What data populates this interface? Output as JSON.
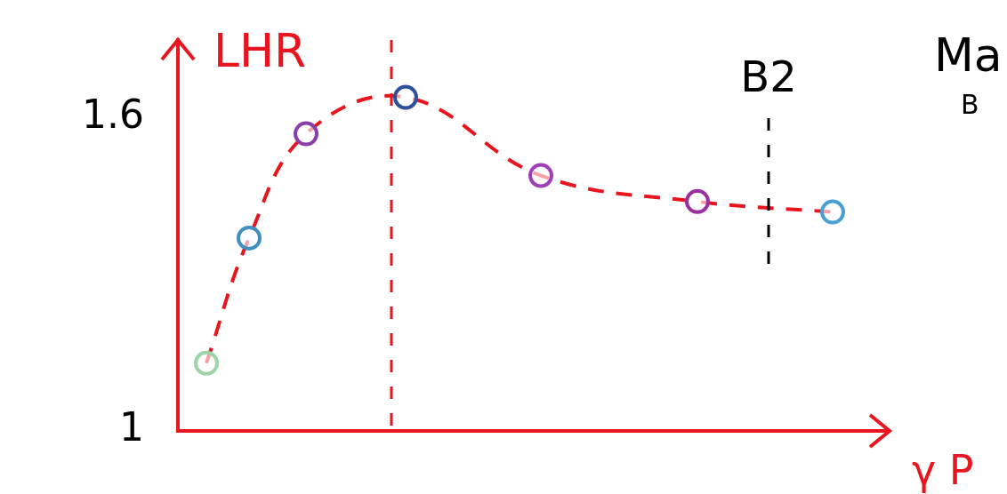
{
  "chart_data": {
    "type": "line",
    "y_label": "LHR",
    "x_label": "γ P",
    "annotations": [
      "Ma",
      "B"
    ],
    "x": [
      0.4,
      1.0,
      1.8,
      3.2,
      5.1,
      7.3,
      9.2
    ],
    "series": [
      {
        "values": [
          1.13,
          1.37,
          1.57,
          1.64,
          1.49,
          1.44,
          1.42
        ],
        "color": "#e8141e",
        "colors": [
          "#9fd4a8",
          "#3f8fbf",
          "#8a3fa8",
          "#2f4f9a",
          "#a040b8",
          "#9a2fa0",
          "#4a9fd0"
        ],
        "line_style": "dashed",
        "marker": "circle"
      }
    ],
    "vlines": [
      {
        "x": 3.0,
        "color": "#e8141e"
      },
      {
        "x": 8.3,
        "color": "#000000",
        "label": "B2"
      }
    ],
    "xlim": [
      0,
      10
    ],
    "ylim": [
      1,
      1.75
    ],
    "yticks": [
      1,
      1.6
    ],
    "grid": false,
    "tick_labels": "y"
  }
}
